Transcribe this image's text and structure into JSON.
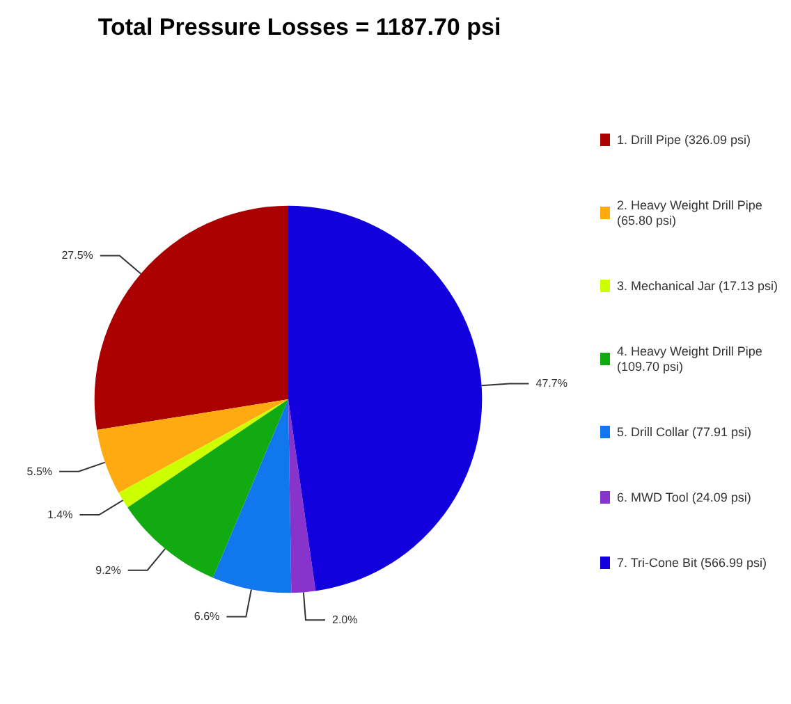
{
  "chart_data": {
    "type": "pie",
    "title": "Total Pressure Losses = 1187.70 psi",
    "categories": [
      "1. Drill Pipe (326.09 psi)",
      "2. Heavy Weight Drill Pipe (65.80 psi)",
      "3. Mechanical Jar (17.13 psi)",
      "4. Heavy Weight Drill Pipe (109.70 psi)",
      "5. Drill Collar (77.91 psi)",
      "6. MWD Tool (24.09 psi)",
      "7. Tri-Cone Bit (566.99 psi)"
    ],
    "values": [
      27.5,
      5.5,
      1.4,
      9.2,
      6.6,
      2.0,
      47.7
    ],
    "value_labels": [
      "27.5%",
      "5.5%",
      "1.4%",
      "9.2%",
      "6.6%",
      "2.0%",
      "47.7%"
    ],
    "colors": [
      "#aa0000",
      "#ffaa11",
      "#ccff00",
      "#11aa11",
      "#1177ee",
      "#8833cc",
      "#1100dd"
    ],
    "legend": "right"
  }
}
